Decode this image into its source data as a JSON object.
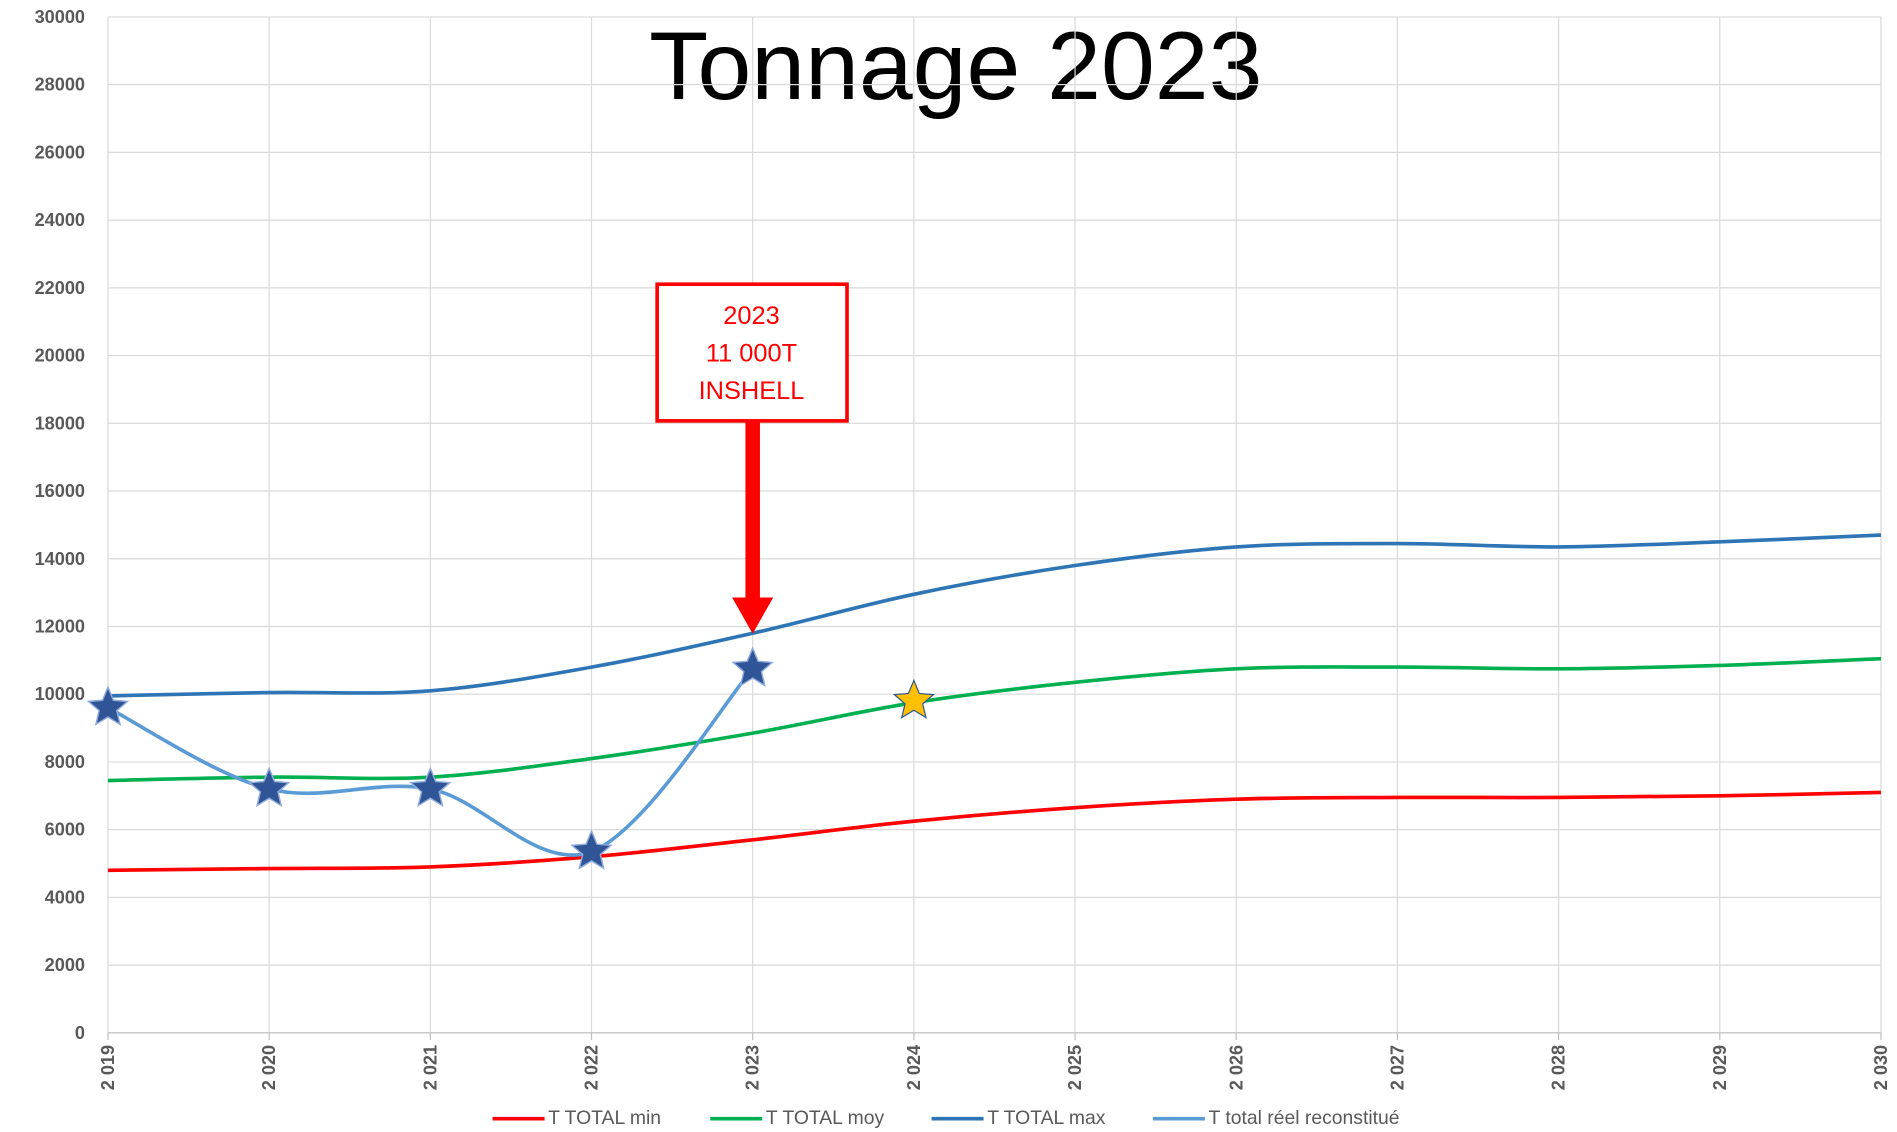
{
  "chart_data": {
    "type": "line",
    "title": "Tonnage 2023",
    "categories": [
      "2 019",
      "2 020",
      "2 021",
      "2 022",
      "2 023",
      "2 024",
      "2 025",
      "2 026",
      "2 027",
      "2 028",
      "2 029",
      "2 030"
    ],
    "series": [
      {
        "name": "T TOTAL min",
        "color": "#ff0000",
        "values": [
          4800,
          4850,
          4900,
          5200,
          5700,
          6250,
          6650,
          6900,
          6950,
          6950,
          7000,
          7100
        ]
      },
      {
        "name": "T TOTAL moy",
        "color": "#00b050",
        "values": [
          7450,
          7550,
          7550,
          8100,
          8850,
          9750,
          10350,
          10750,
          10800,
          10750,
          10850,
          11050
        ]
      },
      {
        "name": "T TOTAL max",
        "color": "#2e75b6",
        "values": [
          9950,
          10050,
          10100,
          10800,
          11800,
          12950,
          13800,
          14350,
          14450,
          14350,
          14500,
          14700
        ]
      },
      {
        "name": "T total réel reconstitué",
        "color": "#5b9bd5",
        "values": [
          9600,
          7200,
          7200,
          5350,
          10750,
          null,
          null,
          null,
          null,
          null,
          null,
          null
        ]
      }
    ],
    "star_point": {
      "category": "2 024",
      "value": 9800,
      "color": "#ffc000"
    },
    "annotation": {
      "lines": [
        "2023",
        "11 000T",
        "INSHELL"
      ],
      "color": "#ff0000"
    },
    "ylim": [
      0,
      30000
    ],
    "yticks": [
      0,
      2000,
      4000,
      6000,
      8000,
      10000,
      12000,
      14000,
      16000,
      18000,
      20000,
      22000,
      24000,
      26000,
      28000,
      30000
    ],
    "grid": true,
    "legend": "bottom"
  }
}
